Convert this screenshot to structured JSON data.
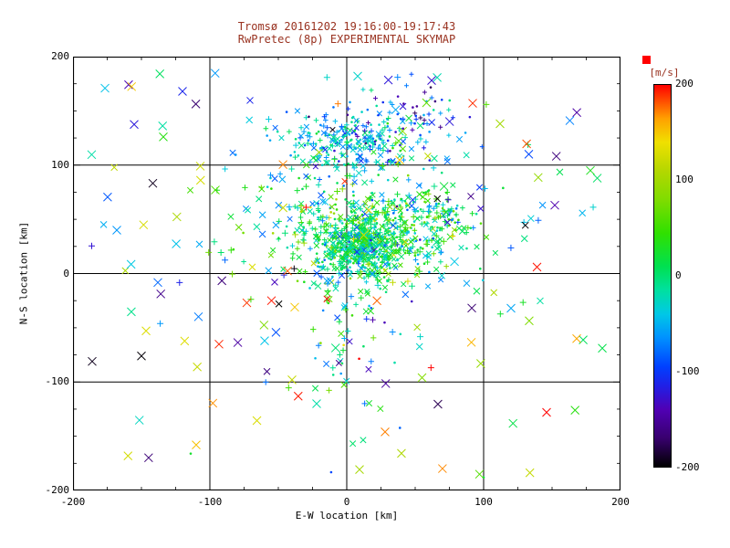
{
  "colors": {
    "title": "#993220",
    "text": "#000000",
    "background": "#ffffff",
    "frame": "#000000",
    "max_marker": "#ff0000"
  },
  "chart_data": {
    "type": "scatter",
    "title": "Tromsø 20161202 19:16:00-19:17:43",
    "subtitle": "RwPretec (8p) EXPERIMENTAL SKYMAP",
    "xlabel": "E-W location [km]",
    "ylabel": "N-S location [km]",
    "xlim": [
      -200,
      200
    ],
    "ylim": [
      -200,
      200
    ],
    "xticks": [
      -200,
      -100,
      0,
      100,
      200
    ],
    "yticks": [
      -200,
      -100,
      0,
      100,
      200
    ],
    "gridlines": [
      -100,
      0,
      100
    ],
    "grid": true,
    "legend_position": "right-colorbar",
    "marker_note": "velocity-colored + / x / dot markers",
    "seed": 20161202,
    "colorbar": {
      "label": "[m/s]",
      "min": -200,
      "max": 200,
      "ticks": [
        200,
        100,
        0,
        -100,
        -200
      ],
      "stops": [
        {
          "v": -200,
          "c": "#000000"
        },
        {
          "v": -170,
          "c": "#38006e"
        },
        {
          "v": -140,
          "c": "#5000b4"
        },
        {
          "v": -115,
          "c": "#2020e6"
        },
        {
          "v": -95,
          "c": "#0040ff"
        },
        {
          "v": -65,
          "c": "#0090ff"
        },
        {
          "v": -40,
          "c": "#00c8e6"
        },
        {
          "v": -15,
          "c": "#00e0a0"
        },
        {
          "v": 10,
          "c": "#00e050"
        },
        {
          "v": 45,
          "c": "#30e000"
        },
        {
          "v": 80,
          "c": "#80dc00"
        },
        {
          "v": 110,
          "c": "#b4d700"
        },
        {
          "v": 140,
          "c": "#f0e000"
        },
        {
          "v": 165,
          "c": "#ffa000"
        },
        {
          "v": 200,
          "c": "#ff0000"
        }
      ]
    },
    "clusters": [
      {
        "name": "core",
        "cx": 10,
        "cy": 24,
        "sx": 14,
        "sy": 11,
        "n": 320,
        "vMean": -5,
        "vSd": 35,
        "markers": [
          "plus",
          "x",
          "dot"
        ],
        "size": 2.5
      },
      {
        "name": "main",
        "cx": 18,
        "cy": 32,
        "sx": 32,
        "sy": 22,
        "n": 520,
        "vMean": 8,
        "vSd": 48,
        "markers": [
          "plus",
          "x",
          "dot"
        ],
        "size": 2.8
      },
      {
        "name": "main-right",
        "cx": 52,
        "cy": 50,
        "sx": 20,
        "sy": 14,
        "n": 110,
        "vMean": 18,
        "vSd": 40,
        "markers": [
          "plus",
          "dot"
        ],
        "size": 2.8
      },
      {
        "name": "upper",
        "cx": 2,
        "cy": 120,
        "sx": 24,
        "sy": 14,
        "n": 240,
        "vMean": -45,
        "vSd": 38,
        "markers": [
          "plus",
          "x",
          "dot"
        ],
        "size": 2.8
      },
      {
        "name": "upper-blue",
        "cx": 38,
        "cy": 142,
        "sx": 28,
        "sy": 16,
        "n": 70,
        "vMean": -95,
        "vSd": 45,
        "markers": [
          "dot",
          "plus"
        ],
        "size": 2.5
      },
      {
        "name": "mid",
        "cx": 8,
        "cy": 75,
        "sx": 50,
        "sy": 22,
        "n": 90,
        "vMean": -5,
        "vSd": 55,
        "markers": [
          "x",
          "plus",
          "dot"
        ],
        "size": 3.2
      },
      {
        "name": "lower",
        "cx": -2,
        "cy": -60,
        "sx": 20,
        "sy": 42,
        "n": 65,
        "vMean": -5,
        "vSd": 75,
        "markers": [
          "x",
          "dot",
          "plus"
        ],
        "size": 3.2
      },
      {
        "name": "halo",
        "cx": 10,
        "cy": 40,
        "sx": 85,
        "sy": 60,
        "n": 120,
        "vMean": 0,
        "vSd": 90,
        "markers": [
          "x",
          "plus"
        ],
        "size": 3.5
      },
      {
        "name": "background",
        "uniform": true,
        "xmin": -195,
        "xmax": 195,
        "ymin": -192,
        "ymax": 192,
        "n": 70,
        "vMin": -200,
        "vMax": 200,
        "markers": [
          "x"
        ],
        "size": 4.5
      }
    ],
    "points": [
      {
        "x": -55,
        "y": -25,
        "v": 195,
        "m": "x"
      },
      {
        "x": -73,
        "y": -27,
        "v": 188,
        "m": "x"
      },
      {
        "x": -38,
        "y": -31,
        "v": 150,
        "m": "x"
      },
      {
        "x": -150,
        "y": -76,
        "v": -198,
        "m": "x"
      },
      {
        "x": -186,
        "y": -81,
        "v": -192,
        "m": "x"
      },
      {
        "x": 146,
        "y": -128,
        "v": 200,
        "m": "x"
      },
      {
        "x": 168,
        "y": -60,
        "v": 162,
        "m": "x"
      },
      {
        "x": 139,
        "y": 6,
        "v": 196,
        "m": "x"
      },
      {
        "x": 120,
        "y": -32,
        "v": -55,
        "m": "x"
      },
      {
        "x": 163,
        "y": 141,
        "v": -70,
        "m": "x"
      },
      {
        "x": -120,
        "y": 168,
        "v": -112,
        "m": "x"
      },
      {
        "x": -134,
        "y": 126,
        "v": 38,
        "m": "x"
      },
      {
        "x": -107,
        "y": 99,
        "v": 122,
        "m": "x"
      },
      {
        "x": 92,
        "y": 157,
        "v": 190,
        "m": "x"
      },
      {
        "x": -110,
        "y": -158,
        "v": 152,
        "m": "x"
      },
      {
        "x": -114,
        "y": -166,
        "v": 25,
        "m": "dot"
      },
      {
        "x": 100,
        "y": -188,
        "v": 15,
        "m": "dot"
      },
      {
        "x": 97,
        "y": -185,
        "v": 60,
        "m": "x"
      },
      {
        "x": 152,
        "y": 63,
        "v": -142,
        "m": "x"
      },
      {
        "x": 178,
        "y": 95,
        "v": 32,
        "m": "x"
      },
      {
        "x": -96,
        "y": 77,
        "v": 58,
        "m": "x"
      },
      {
        "x": -60,
        "y": -62,
        "v": -42,
        "m": "x"
      },
      {
        "x": 28,
        "y": -146,
        "v": 172,
        "m": "x"
      },
      {
        "x": -22,
        "y": -120,
        "v": -18,
        "m": "x"
      },
      {
        "x": 55,
        "y": -96,
        "v": 82,
        "m": "x"
      },
      {
        "x": 133,
        "y": 110,
        "v": -92,
        "m": "x"
      },
      {
        "x": -168,
        "y": 40,
        "v": -62,
        "m": "x"
      },
      {
        "x": 62,
        "y": 178,
        "v": -128,
        "m": "x"
      },
      {
        "x": 8,
        "y": 182,
        "v": -30,
        "m": "x"
      },
      {
        "x": -40,
        "y": -98,
        "v": 118,
        "m": "x"
      }
    ]
  }
}
